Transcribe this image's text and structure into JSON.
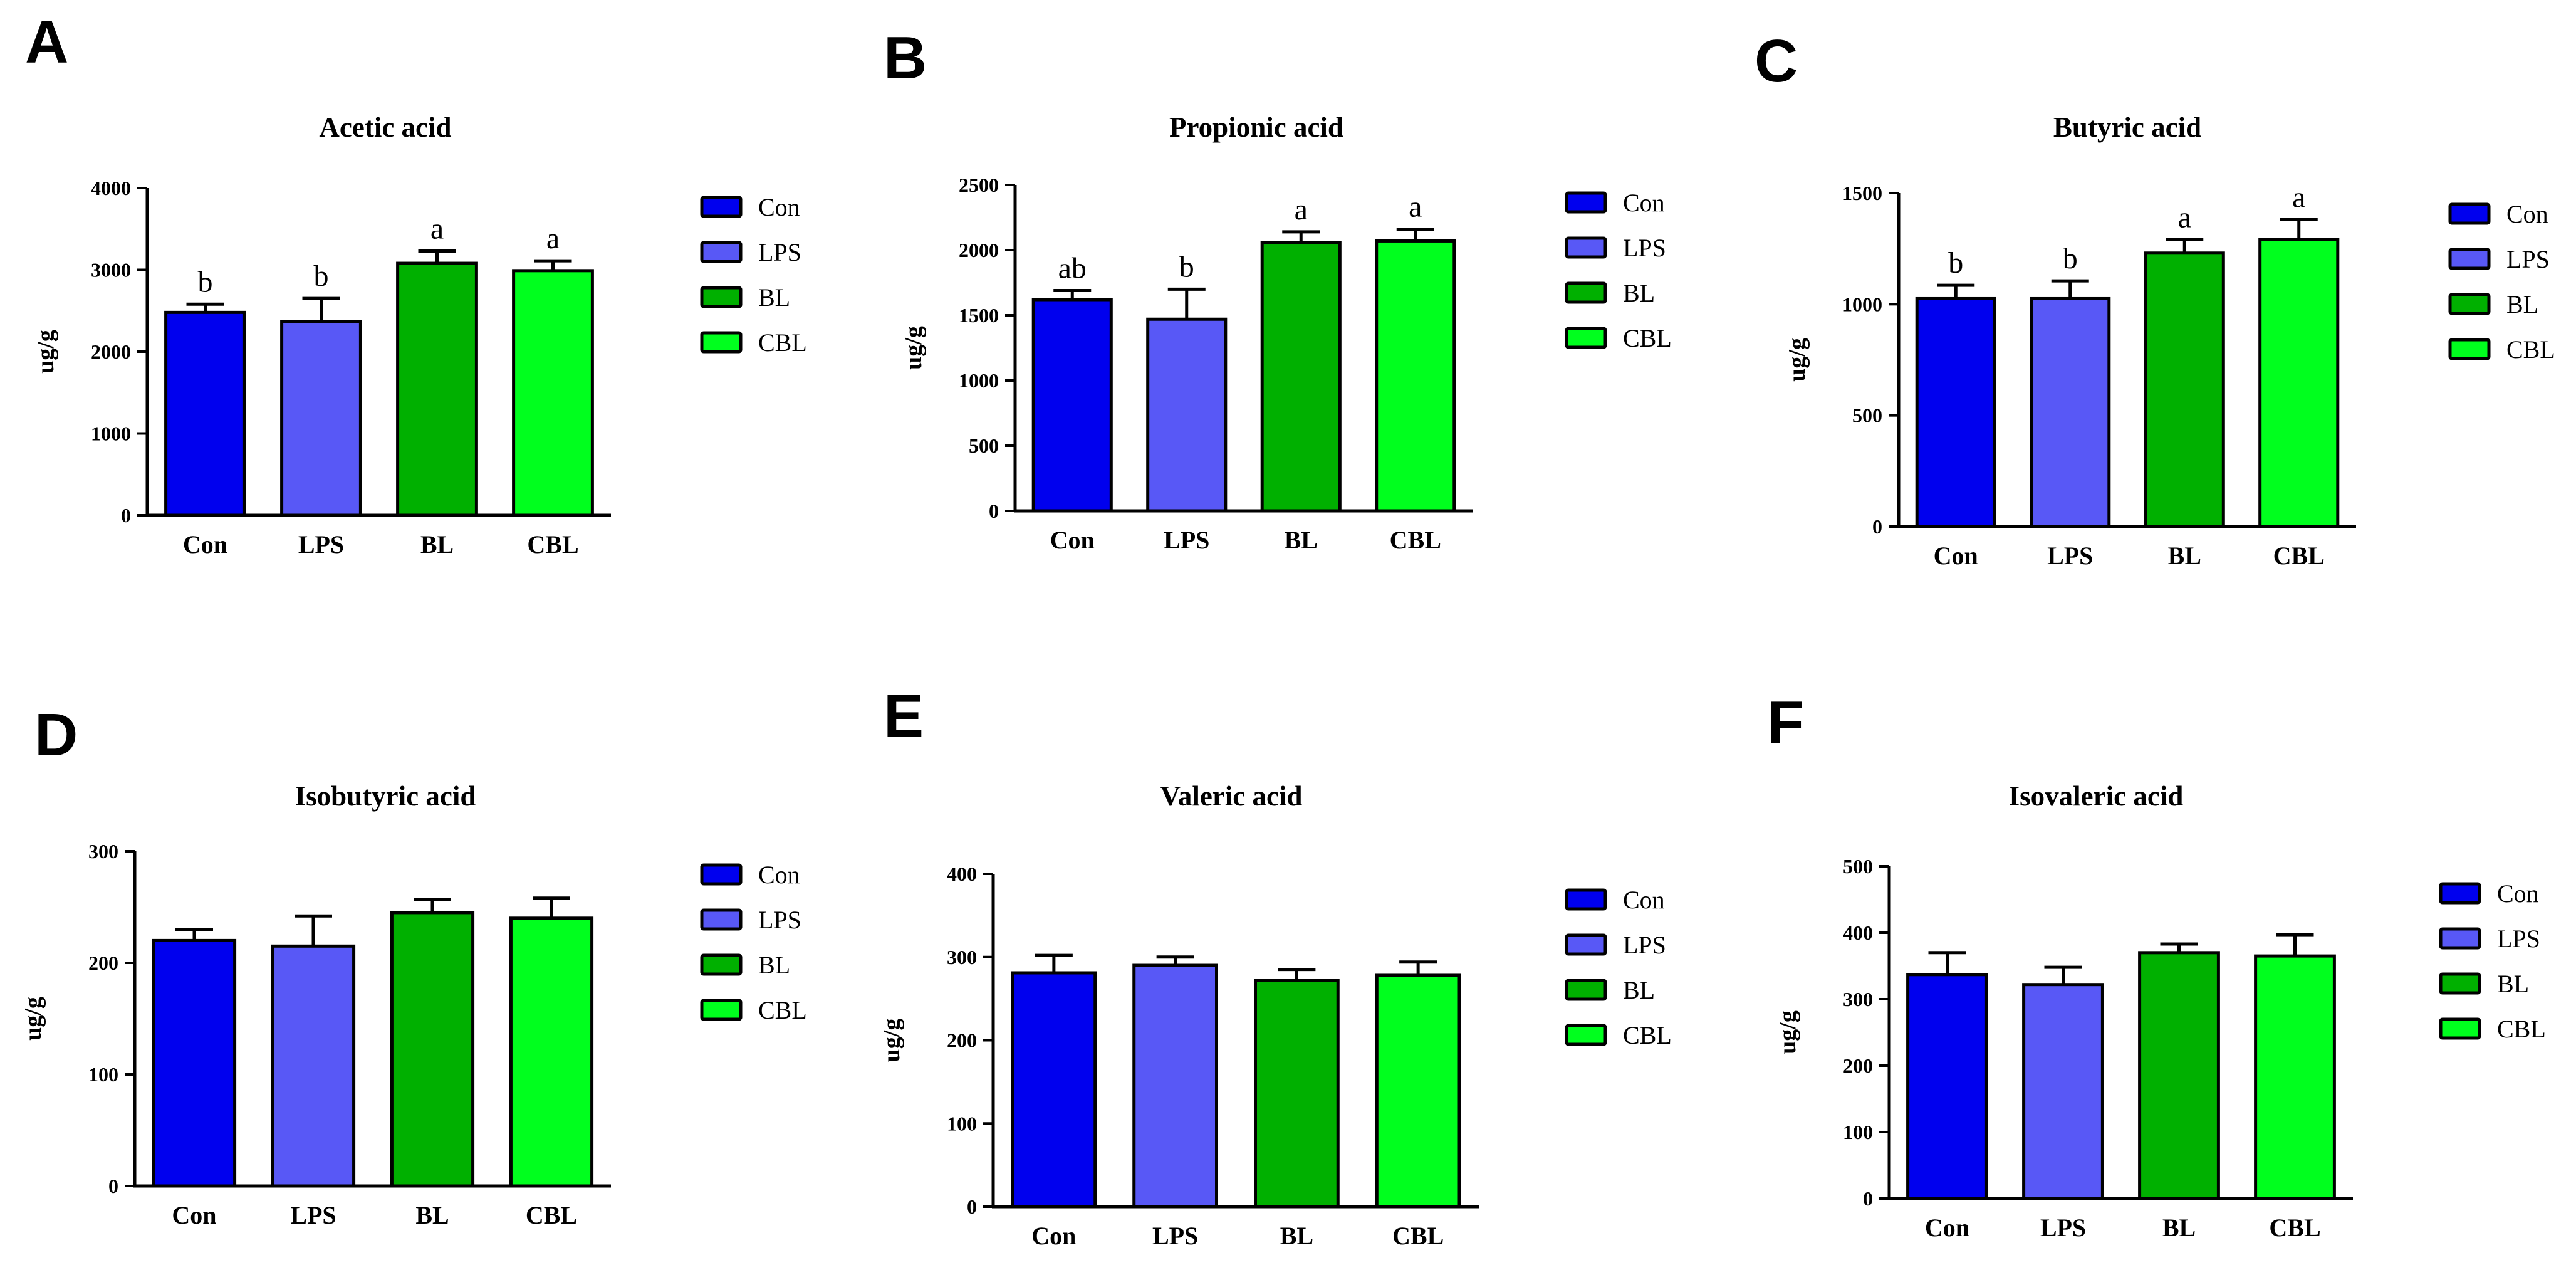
{
  "colors": {
    "Con": "#0000ee",
    "LPS": "#5858f6",
    "BL": "#00b000",
    "CBL": "#00ff1e"
  },
  "chart_data": [
    {
      "type": "bar",
      "panel": "A",
      "title": "Acetic acid",
      "ylabel": "ug/g",
      "xlabel": "",
      "categories": [
        "Con",
        "LPS",
        "BL",
        "CBL"
      ],
      "values": [
        2480,
        2370,
        3080,
        2990
      ],
      "errors": [
        100,
        280,
        150,
        120
      ],
      "significance": [
        "b",
        "b",
        "a",
        "a"
      ],
      "ylim": [
        0,
        4000
      ],
      "yticks": [
        0,
        1000,
        2000,
        3000,
        4000
      ],
      "legend": [
        "Con",
        "LPS",
        "BL",
        "CBL"
      ]
    },
    {
      "type": "bar",
      "panel": "B",
      "title": "Propionic acid",
      "ylabel": "ug/g",
      "xlabel": "",
      "categories": [
        "Con",
        "LPS",
        "BL",
        "CBL"
      ],
      "values": [
        1620,
        1470,
        2060,
        2070
      ],
      "errors": [
        70,
        230,
        80,
        90
      ],
      "significance": [
        "ab",
        "b",
        "a",
        "a"
      ],
      "ylim": [
        0,
        2500
      ],
      "yticks": [
        0,
        500,
        1000,
        1500,
        2000,
        2500
      ],
      "legend": [
        "Con",
        "LPS",
        "BL",
        "CBL"
      ]
    },
    {
      "type": "bar",
      "panel": "C",
      "title": "Butyric acid",
      "ylabel": "ug/g",
      "xlabel": "",
      "categories": [
        "Con",
        "LPS",
        "BL",
        "CBL"
      ],
      "values": [
        1025,
        1025,
        1230,
        1290
      ],
      "errors": [
        60,
        80,
        60,
        90
      ],
      "significance": [
        "b",
        "b",
        "a",
        "a"
      ],
      "ylim": [
        0,
        1500
      ],
      "yticks": [
        0,
        500,
        1000,
        1500
      ],
      "legend": [
        "Con",
        "LPS",
        "BL",
        "CBL"
      ]
    },
    {
      "type": "bar",
      "panel": "D",
      "title": "Isobutyric acid",
      "ylabel": "ug/g",
      "xlabel": "",
      "categories": [
        "Con",
        "LPS",
        "BL",
        "CBL"
      ],
      "values": [
        220,
        215,
        245,
        240
      ],
      "errors": [
        10,
        27,
        12,
        18
      ],
      "significance": [
        "",
        "",
        "",
        ""
      ],
      "ylim": [
        0,
        300
      ],
      "yticks": [
        0,
        100,
        200,
        300
      ],
      "legend": [
        "Con",
        "LPS",
        "BL",
        "CBL"
      ]
    },
    {
      "type": "bar",
      "panel": "E",
      "title": "Valeric acid",
      "ylabel": "ug/g",
      "xlabel": "",
      "categories": [
        "Con",
        "LPS",
        "BL",
        "CBL"
      ],
      "values": [
        281,
        290,
        272,
        278
      ],
      "errors": [
        21,
        10,
        13,
        16
      ],
      "significance": [
        "",
        "",
        "",
        ""
      ],
      "ylim": [
        0,
        400
      ],
      "yticks": [
        0,
        100,
        200,
        300,
        400
      ],
      "legend": [
        "Con",
        "LPS",
        "BL",
        "CBL"
      ]
    },
    {
      "type": "bar",
      "panel": "F",
      "title": "Isovaleric acid",
      "ylabel": "ug/g",
      "xlabel": "",
      "categories": [
        "Con",
        "LPS",
        "BL",
        "CBL"
      ],
      "values": [
        337,
        322,
        370,
        365
      ],
      "errors": [
        33,
        26,
        13,
        32
      ],
      "significance": [
        "",
        "",
        "",
        ""
      ],
      "ylim": [
        0,
        500
      ],
      "yticks": [
        0,
        100,
        200,
        300,
        400,
        500
      ],
      "legend": [
        "Con",
        "LPS",
        "BL",
        "CBL"
      ]
    }
  ]
}
